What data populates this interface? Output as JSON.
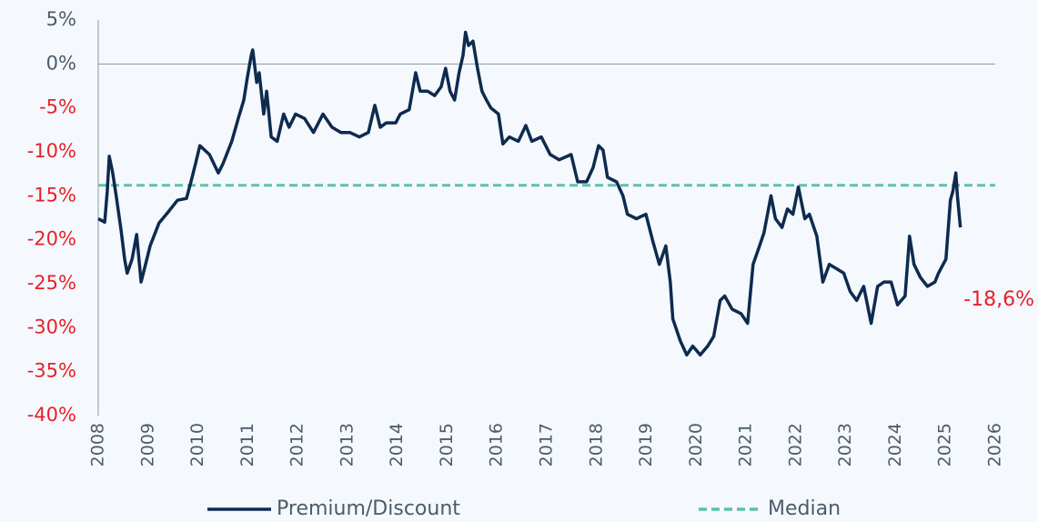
{
  "chart_data": {
    "type": "line",
    "ylim": [
      -40,
      5
    ],
    "yticks": [
      {
        "value": 5,
        "label": "5%"
      },
      {
        "value": 0,
        "label": "0%"
      },
      {
        "value": -5,
        "label": "-5%"
      },
      {
        "value": -10,
        "label": "-10%"
      },
      {
        "value": -15,
        "label": "-15%"
      },
      {
        "value": -20,
        "label": "-20%"
      },
      {
        "value": -25,
        "label": "-25%"
      },
      {
        "value": -30,
        "label": "-30%"
      },
      {
        "value": -35,
        "label": "-35%"
      },
      {
        "value": -40,
        "label": "-40%"
      }
    ],
    "ytick_colors": {
      "negative": "#e8202a",
      "other": "#4d5b6a"
    },
    "xlim": [
      2008,
      2026
    ],
    "xticks": [
      2008,
      2009,
      2010,
      2011,
      2012,
      2013,
      2014,
      2015,
      2016,
      2017,
      2018,
      2019,
      2020,
      2021,
      2022,
      2023,
      2024,
      2025,
      2026
    ],
    "series": [
      {
        "name": "Premium/Discount",
        "color": "#0e2a4f",
        "dashed": false,
        "x": [
          2008.0,
          2008.13,
          2008.18,
          2008.22,
          2008.29,
          2008.36,
          2008.46,
          2008.53,
          2008.58,
          2008.68,
          2008.77,
          2008.86,
          2008.95,
          2009.04,
          2009.22,
          2009.41,
          2009.59,
          2009.77,
          2009.86,
          2009.95,
          2010.04,
          2010.23,
          2010.41,
          2010.5,
          2010.68,
          2010.81,
          2010.92,
          2010.99,
          2011.07,
          2011.1,
          2011.18,
          2011.23,
          2011.32,
          2011.38,
          2011.47,
          2011.59,
          2011.72,
          2011.83,
          2011.96,
          2012.14,
          2012.32,
          2012.51,
          2012.69,
          2012.87,
          2013.05,
          2013.24,
          2013.42,
          2013.55,
          2013.66,
          2013.78,
          2013.97,
          2014.06,
          2014.24,
          2014.37,
          2014.46,
          2014.61,
          2014.75,
          2014.88,
          2014.97,
          2015.06,
          2015.15,
          2015.24,
          2015.32,
          2015.37,
          2015.43,
          2015.52,
          2015.61,
          2015.7,
          2015.79,
          2015.88,
          2016.03,
          2016.12,
          2016.25,
          2016.43,
          2016.58,
          2016.7,
          2016.89,
          2017.07,
          2017.25,
          2017.49,
          2017.62,
          2017.8,
          2017.93,
          2018.04,
          2018.13,
          2018.22,
          2018.4,
          2018.53,
          2018.62,
          2018.8,
          2018.99,
          2019.13,
          2019.26,
          2019.39,
          2019.48,
          2019.53,
          2019.68,
          2019.81,
          2019.93,
          2020.08,
          2020.23,
          2020.35,
          2020.48,
          2020.57,
          2020.72,
          2020.9,
          2021.03,
          2021.14,
          2021.27,
          2021.36,
          2021.5,
          2021.59,
          2021.72,
          2021.83,
          2021.94,
          2022.05,
          2022.18,
          2022.27,
          2022.42,
          2022.54,
          2022.67,
          2022.82,
          2022.96,
          2023.09,
          2023.22,
          2023.36,
          2023.51,
          2023.64,
          2023.77,
          2023.91,
          2024.04,
          2024.19,
          2024.28,
          2024.37,
          2024.5,
          2024.64,
          2024.79,
          2024.86,
          2025.01,
          2025.1,
          2025.15,
          2025.21,
          2025.24,
          2025.3
        ],
        "values": [
          -17.6,
          -18,
          -14.5,
          -10.5,
          -12.4,
          -15,
          -19,
          -22.2,
          -23.8,
          -22.2,
          -19.4,
          -24.8,
          -22.8,
          -20.7,
          -18.1,
          -16.8,
          -15.5,
          -15.3,
          -13.4,
          -11.4,
          -9.3,
          -10.3,
          -12.4,
          -11.4,
          -8.8,
          -6.2,
          -4.1,
          -1.6,
          1,
          1.6,
          -2.1,
          -1,
          -5.7,
          -3.1,
          -8.3,
          -8.8,
          -5.7,
          -7.2,
          -5.7,
          -6.2,
          -7.8,
          -5.7,
          -7.2,
          -7.8,
          -7.8,
          -8.3,
          -7.8,
          -4.7,
          -7.2,
          -6.7,
          -6.7,
          -5.7,
          -5.2,
          -1,
          -3.1,
          -3.1,
          -3.6,
          -2.6,
          -0.5,
          -3.1,
          -4.1,
          -1,
          1,
          3.6,
          2.1,
          2.6,
          -0.5,
          -3.1,
          -4.1,
          -5,
          -5.7,
          -9.1,
          -8.3,
          -8.8,
          -7,
          -8.8,
          -8.3,
          -10.3,
          -10.9,
          -10.3,
          -13.4,
          -13.4,
          -11.8,
          -9.3,
          -9.8,
          -12.9,
          -13.4,
          -15,
          -17.1,
          -17.6,
          -17.1,
          -20.2,
          -22.8,
          -20.7,
          -24.8,
          -29,
          -31.5,
          -33.1,
          -32.1,
          -33.1,
          -32.1,
          -31,
          -26.9,
          -26.4,
          -27.9,
          -28.4,
          -29.5,
          -22.8,
          -20.7,
          -19.2,
          -15,
          -17.6,
          -18.6,
          -16.5,
          -17.1,
          -14,
          -17.6,
          -17.1,
          -19.6,
          -24.8,
          -22.8,
          -23.3,
          -23.8,
          -25.9,
          -26.9,
          -25.3,
          -29.5,
          -25.3,
          -24.8,
          -24.8,
          -27.4,
          -26.4,
          -19.6,
          -22.8,
          -24.3,
          -25.3,
          -24.8,
          -23.8,
          -22.2,
          -15.5,
          -14.5,
          -12.4,
          -15,
          -18.6
        ]
      },
      {
        "name": "Median",
        "color": "#5cc2ad",
        "dashed": true,
        "x": [
          2008,
          2026
        ],
        "values": [
          -13.8,
          -13.8
        ]
      }
    ],
    "annotations": [
      {
        "text": "-18,6%"
      }
    ],
    "zero_line": true
  }
}
